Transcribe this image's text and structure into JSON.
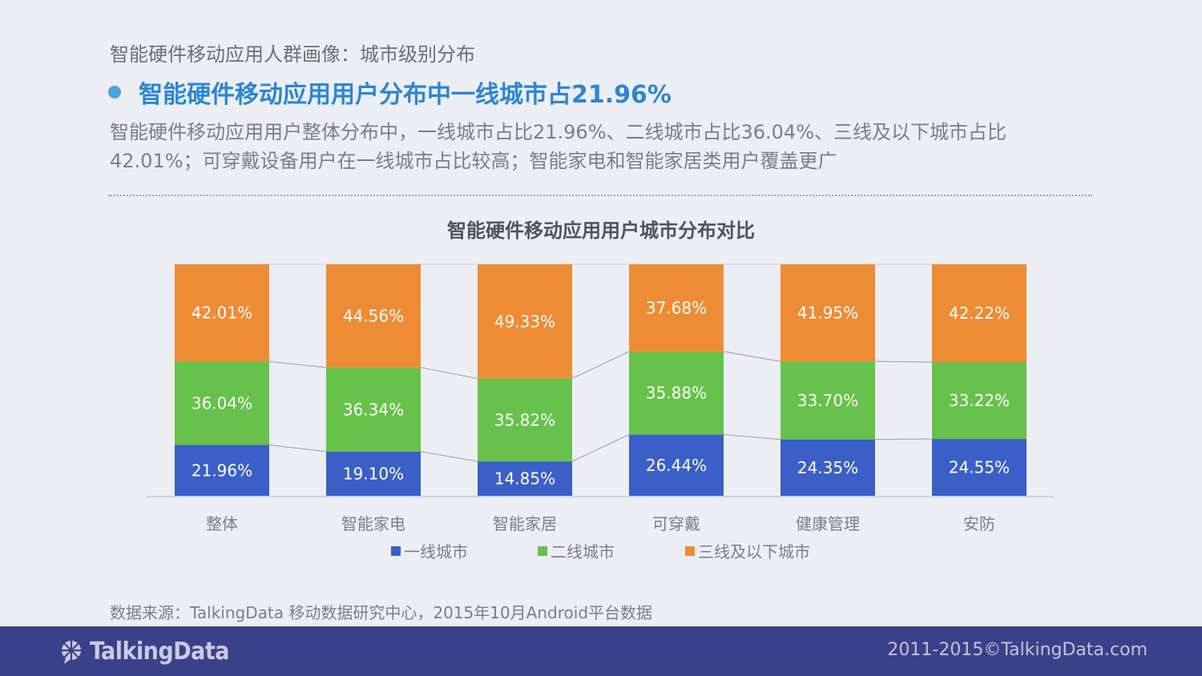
{
  "header": {
    "subtitle": "智能硬件移动应用人群画像：城市级别分布",
    "headline": "智能硬件移动应用用户分布中一线城市占21.96%",
    "description": "智能硬件移动应用用户整体分布中，一线城市占比21.96%、二线城市占比36.04%、三线及以下城市占比42.01%；可穿戴设备用户在一线城市占比较高；智能家电和智能家居类用户覆盖更广"
  },
  "chart_data": {
    "type": "bar",
    "stacked": true,
    "normalized": true,
    "title": "智能硬件移动应用用户城市分布对比",
    "categories": [
      "整体",
      "智能家电",
      "智能家居",
      "可穿戴",
      "健康管理",
      "安防"
    ],
    "series": [
      {
        "name": "一线城市",
        "color": "#3a5fc6",
        "values": [
          21.96,
          19.1,
          14.85,
          26.44,
          24.35,
          24.55
        ],
        "labels": [
          "21.96%",
          "19.10%",
          "14.85%",
          "26.44%",
          "24.35%",
          "24.55%"
        ]
      },
      {
        "name": "二线城市",
        "color": "#66c24a",
        "values": [
          36.04,
          36.34,
          35.82,
          35.88,
          33.7,
          33.22
        ],
        "labels": [
          "36.04%",
          "36.34%",
          "35.82%",
          "35.88%",
          "33.70%",
          "33.22%"
        ]
      },
      {
        "name": "三线及以下城市",
        "color": "#ee8c36",
        "values": [
          42.01,
          44.56,
          49.33,
          37.68,
          41.95,
          42.22
        ],
        "labels": [
          "42.01%",
          "44.56%",
          "49.33%",
          "37.68%",
          "41.95%",
          "42.22%"
        ]
      }
    ],
    "ylim": [
      0,
      100
    ],
    "legend_position": "bottom",
    "series_lines": true
  },
  "source": "数据来源：TalkingData 移动数据研究中心，2015年10月Android平台数据",
  "footer": {
    "logo": "TalkingData",
    "copyright": "2011-2015©TalkingData.com"
  }
}
